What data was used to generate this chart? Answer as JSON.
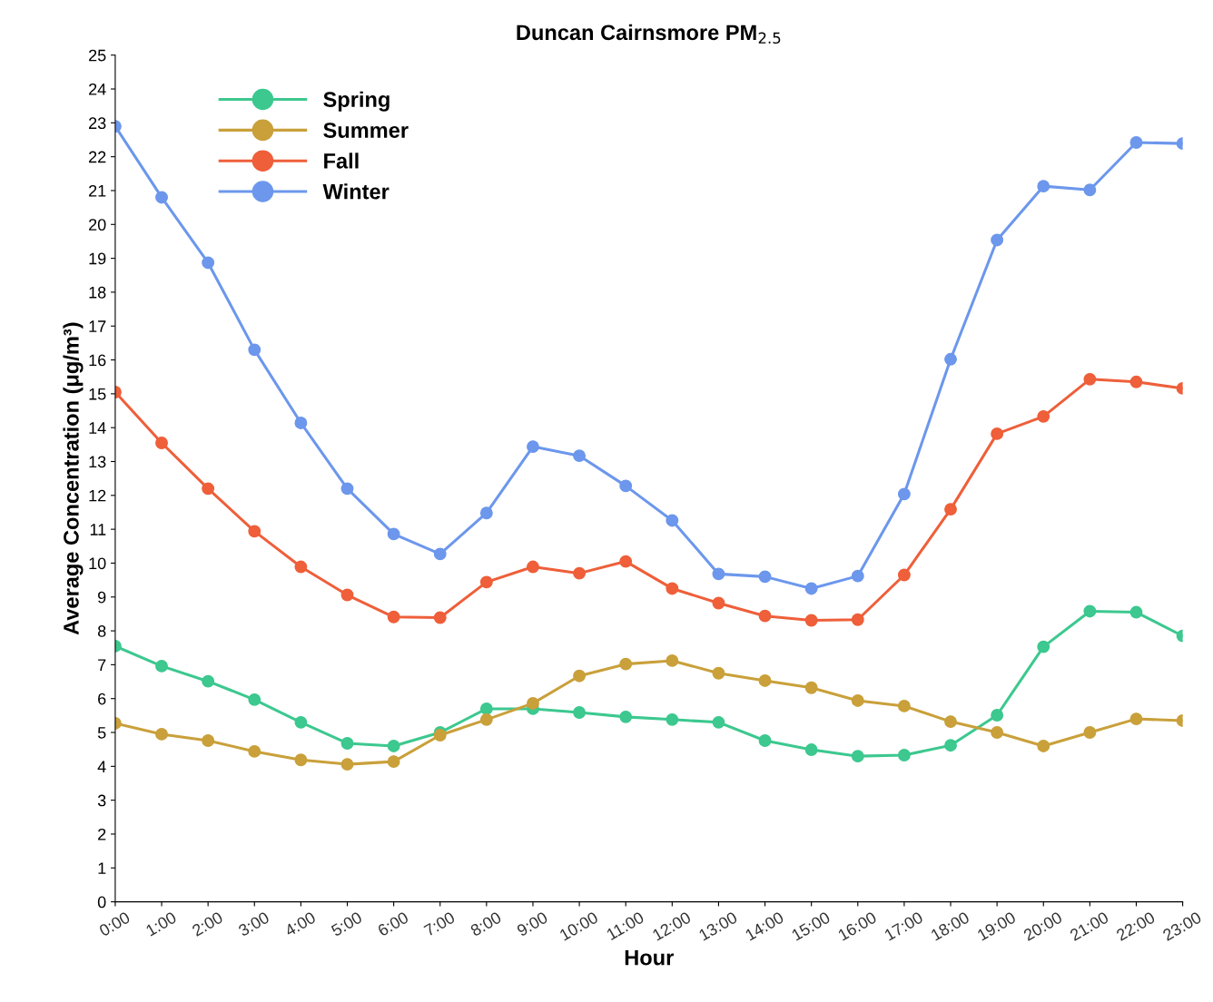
{
  "chart_data": {
    "type": "line",
    "title": "Duncan Cairnsmore PM$_{2.5}$",
    "xlabel": "Hour",
    "ylabel": "Average Concentration (μg/m³)",
    "categories": [
      "0:00",
      "1:00",
      "2:00",
      "3:00",
      "4:00",
      "5:00",
      "6:00",
      "7:00",
      "8:00",
      "9:00",
      "10:00",
      "11:00",
      "12:00",
      "13:00",
      "14:00",
      "15:00",
      "16:00",
      "17:00",
      "18:00",
      "19:00",
      "20:00",
      "21:00",
      "22:00",
      "23:00"
    ],
    "series": [
      {
        "name": "Spring",
        "color": "#3cc88f",
        "values": [
          7.55,
          6.96,
          6.51,
          5.97,
          5.3,
          4.68,
          4.6,
          5.0,
          5.7,
          5.7,
          5.59,
          5.46,
          5.38,
          5.3,
          4.76,
          4.49,
          4.3,
          4.33,
          4.62,
          5.51,
          7.53,
          8.58,
          8.55,
          7.85
        ]
      },
      {
        "name": "Summer",
        "color": "#c9a03a",
        "values": [
          5.27,
          4.95,
          4.76,
          4.44,
          4.19,
          4.06,
          4.14,
          4.92,
          5.38,
          5.86,
          6.67,
          7.02,
          7.12,
          6.75,
          6.53,
          6.32,
          5.94,
          5.78,
          5.32,
          5.0,
          4.6,
          5.0,
          5.4,
          5.35
        ]
      },
      {
        "name": "Fall",
        "color": "#ee5f3a",
        "values": [
          15.05,
          13.55,
          12.2,
          10.94,
          9.89,
          9.06,
          8.41,
          8.39,
          9.44,
          9.89,
          9.7,
          10.05,
          9.25,
          8.82,
          8.44,
          8.31,
          8.33,
          9.65,
          11.59,
          13.82,
          14.33,
          15.43,
          15.35,
          15.16
        ]
      },
      {
        "name": "Winter",
        "color": "#6c97ec",
        "values": [
          22.9,
          20.8,
          18.87,
          16.3,
          14.14,
          12.2,
          10.86,
          10.27,
          11.48,
          13.44,
          13.17,
          12.28,
          11.26,
          9.68,
          9.6,
          9.25,
          9.62,
          12.04,
          16.02,
          19.54,
          21.13,
          21.02,
          22.42,
          22.39
        ]
      }
    ],
    "ylim": [
      0,
      25
    ],
    "yticks": [
      0,
      1,
      2,
      3,
      4,
      5,
      6,
      7,
      8,
      9,
      10,
      11,
      12,
      13,
      14,
      15,
      16,
      17,
      18,
      19,
      20,
      21,
      22,
      23,
      24,
      25
    ],
    "grid": false,
    "legend": "top left",
    "marker": "circle",
    "line_style": "solid"
  }
}
